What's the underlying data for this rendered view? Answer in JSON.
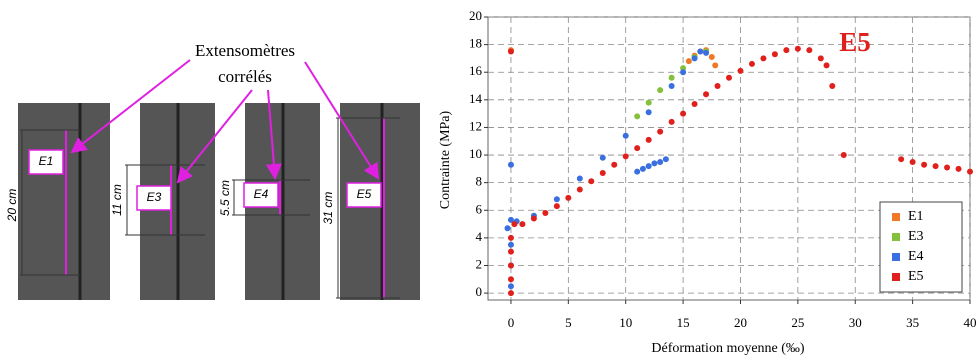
{
  "figure": {
    "caption": [
      "Extensomètres",
      "corrélés"
    ],
    "gauges": [
      {
        "label": "E1",
        "length": "20 cm"
      },
      {
        "label": "E3",
        "length": "11 cm"
      },
      {
        "label": "E4",
        "length": "5.5 cm"
      },
      {
        "label": "E5",
        "length": "31 cm"
      }
    ]
  },
  "chart_data": {
    "type": "scatter",
    "xlabel": "Déformation moyenne (‰)",
    "ylabel": "Contrainte (MPa)",
    "annotation": "E5",
    "xlim": [
      -2,
      40
    ],
    "ylim": [
      -0.5,
      20
    ],
    "xticks": [
      0,
      5,
      10,
      15,
      20,
      25,
      30,
      35,
      40
    ],
    "yticks": [
      0,
      2,
      4,
      6,
      8,
      10,
      12,
      14,
      16,
      18,
      20
    ],
    "grid": true,
    "legend": "lower right",
    "series": [
      {
        "name": "E1",
        "color": "#f07828",
        "x": [
          15.5,
          16,
          16.5,
          17,
          17.5,
          17.8,
          0
        ],
        "values": [
          16.8,
          17.2,
          17.5,
          17.6,
          17.1,
          16.5,
          17.6
        ]
      },
      {
        "name": "E3",
        "color": "#84c03c",
        "x": [
          11,
          12,
          13,
          14,
          15,
          16,
          17
        ],
        "values": [
          12.8,
          13.8,
          14.7,
          15.6,
          16.3,
          17.1,
          17.5
        ]
      },
      {
        "name": "E4",
        "color": "#3a6fe0",
        "x": [
          0,
          0,
          0,
          0,
          -0.3,
          0.5,
          2,
          4,
          6,
          8,
          10,
          12,
          14,
          15,
          16,
          16.5,
          11,
          11.5,
          12,
          12.5,
          13,
          13.5,
          0,
          17
        ],
        "values": [
          0.5,
          2,
          3.5,
          5.3,
          4.7,
          5.2,
          5.6,
          6.8,
          8.3,
          9.8,
          11.4,
          13.1,
          15,
          16,
          17,
          17.5,
          8.8,
          9,
          9.2,
          9.4,
          9.5,
          9.7,
          9.3,
          17.4
        ]
      },
      {
        "name": "E5",
        "color": "#e0201c",
        "x": [
          0,
          0,
          0,
          0,
          0,
          0.3,
          1,
          2,
          3,
          4,
          5,
          6,
          7,
          8,
          9,
          10,
          11,
          12,
          13,
          14,
          15,
          16,
          17,
          18,
          19,
          20,
          21,
          22,
          23,
          24,
          25,
          26,
          27,
          27.5,
          28,
          29,
          34,
          35,
          36,
          37,
          38,
          39,
          40,
          0
        ],
        "values": [
          0,
          1,
          2,
          3,
          4,
          5,
          5,
          5.4,
          5.8,
          6.3,
          6.9,
          7.5,
          8.1,
          8.7,
          9.3,
          9.9,
          10.5,
          11.1,
          11.7,
          12.4,
          13,
          13.7,
          14.4,
          15,
          15.6,
          16.1,
          16.6,
          17,
          17.3,
          17.6,
          17.7,
          17.6,
          17,
          16.5,
          15,
          10,
          9.7,
          9.5,
          9.3,
          9.2,
          9.1,
          9,
          8.8,
          17.5
        ]
      }
    ]
  }
}
